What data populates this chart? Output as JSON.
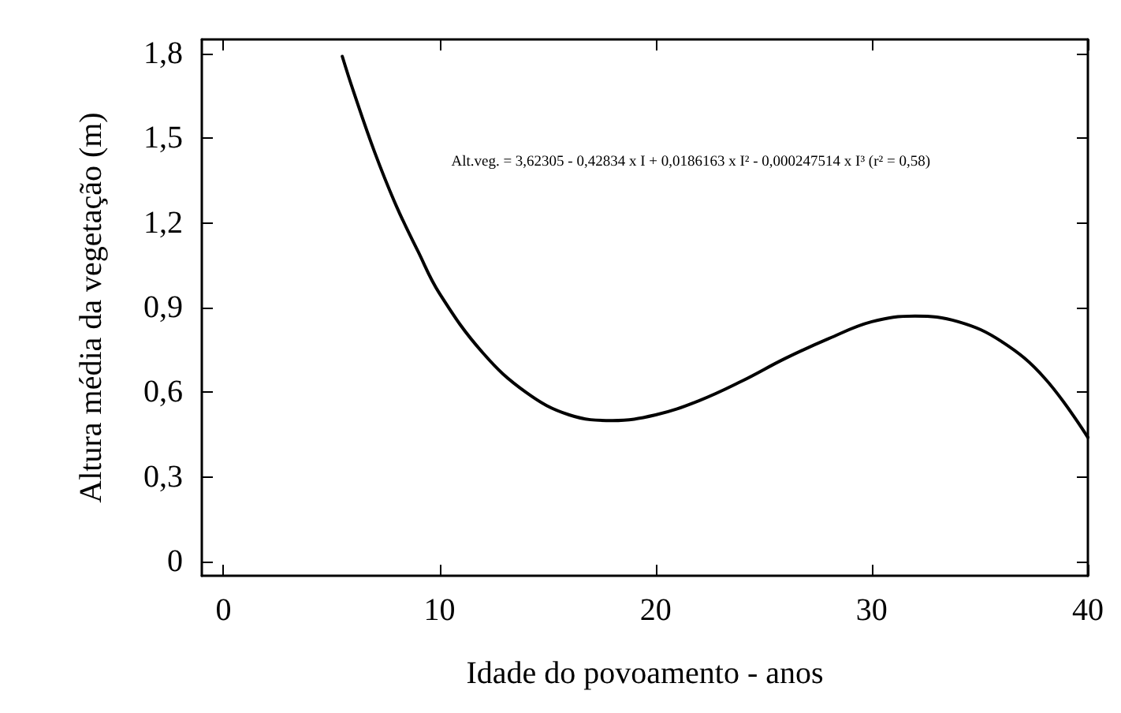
{
  "chart_data": {
    "type": "line",
    "xlabel": "Idade do povoamento - anos",
    "ylabel": "Altura média da vegetação (m)",
    "annotations": [
      "Alt.veg. = 3,62305 - 0,42834 x I + 0,0186163 x I² - 0,000247514 x I³ (r² = 0,58)"
    ],
    "series": [
      {
        "color": "#000000",
        "x": [
          5.5,
          6,
          7,
          8,
          9,
          10,
          12,
          14,
          16,
          18,
          20,
          22,
          24,
          26,
          28,
          30,
          32,
          34,
          36,
          38,
          40
        ],
        "values": [
          1.79,
          1.67,
          1.45,
          1.26,
          1.1,
          0.95,
          0.74,
          0.6,
          0.52,
          0.5,
          0.52,
          0.57,
          0.64,
          0.72,
          0.79,
          0.85,
          0.87,
          0.85,
          0.78,
          0.65,
          0.44
        ]
      }
    ],
    "xlim": [
      -1,
      40
    ],
    "xticks": [
      0,
      10,
      20,
      30,
      40
    ],
    "ylim": [
      -0.05,
      1.85
    ],
    "yticks": [
      {
        "value": 0,
        "label": "0"
      },
      {
        "value": 0.3,
        "label": "0,3"
      },
      {
        "value": 0.6,
        "label": "0,6"
      },
      {
        "value": 0.9,
        "label": "0,9"
      },
      {
        "value": 1.2,
        "label": "1,2"
      },
      {
        "value": 1.5,
        "label": "1,5"
      },
      {
        "value": 1.8,
        "label": "1,8"
      }
    ],
    "grid": false,
    "marker": "none",
    "line_style": "solid"
  }
}
